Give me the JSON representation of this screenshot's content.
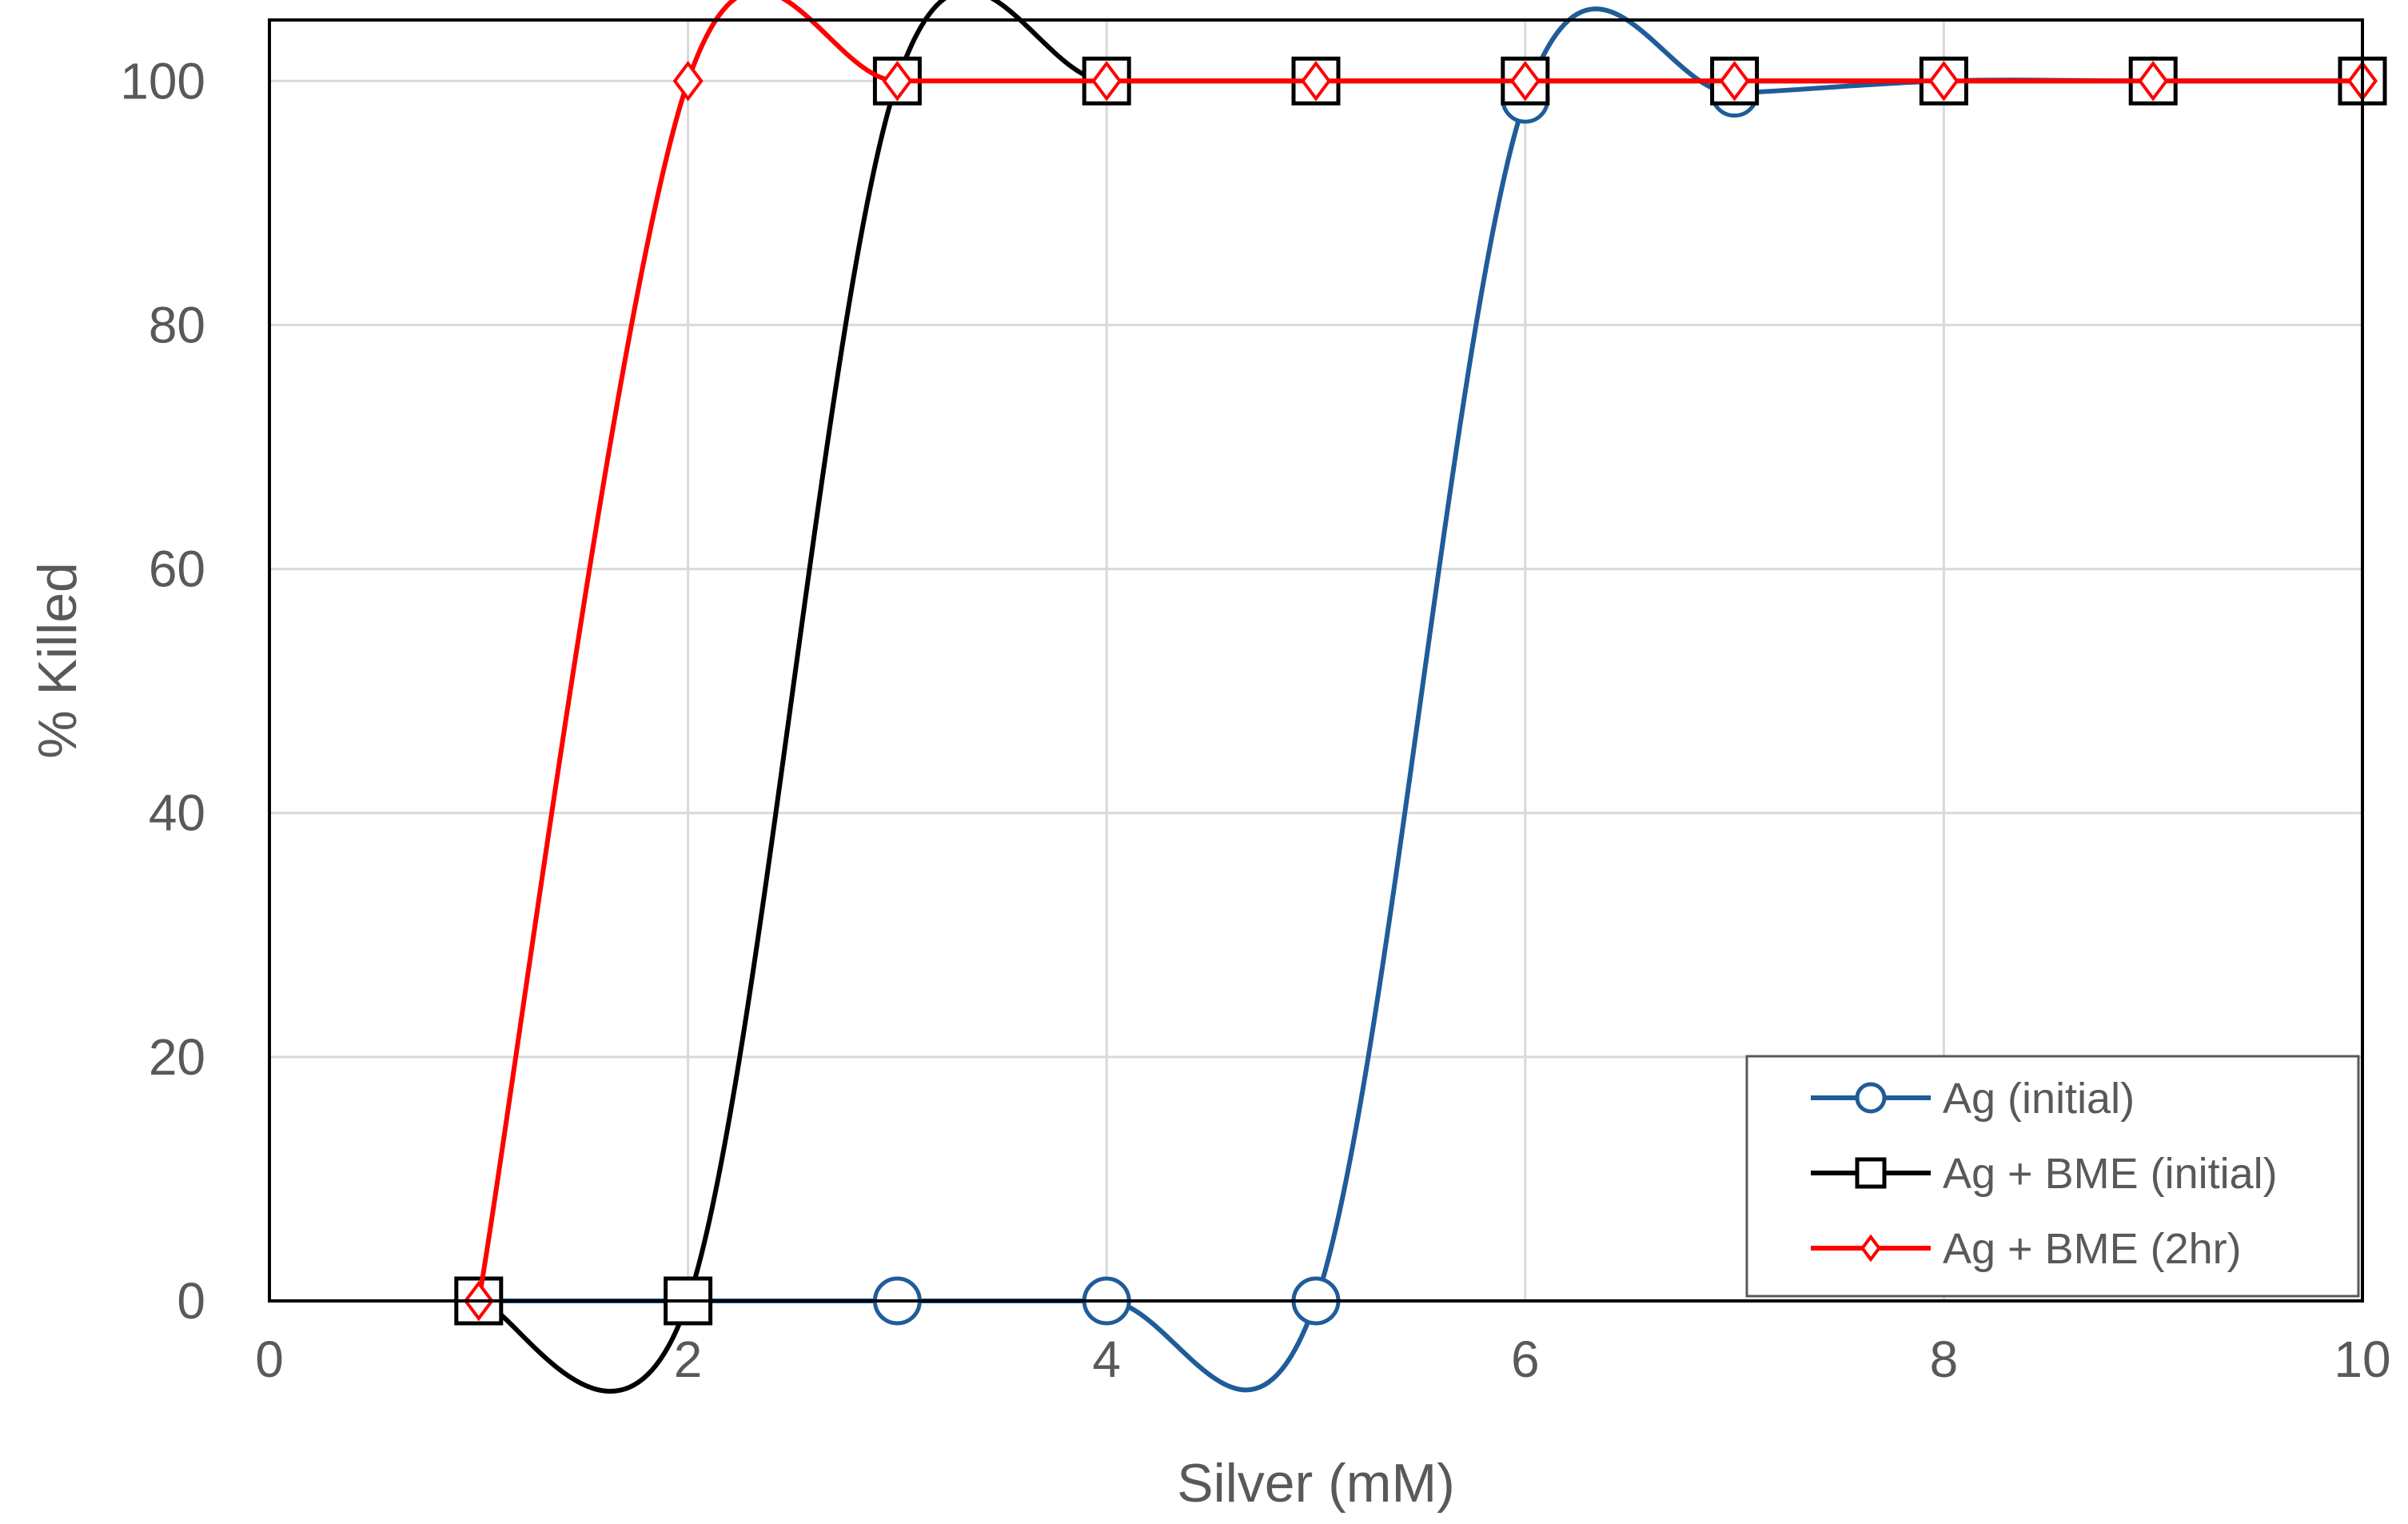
{
  "chart_data": {
    "type": "line",
    "title": "",
    "xlabel": "Silver (mM)",
    "ylabel": "% Killed",
    "xlim": [
      0,
      10
    ],
    "ylim": [
      0,
      105
    ],
    "xticks": [
      0,
      2,
      4,
      6,
      8,
      10
    ],
    "yticks": [
      0,
      20,
      40,
      60,
      80,
      100
    ],
    "grid": true,
    "smooth": true,
    "legend_position": "bottom-right",
    "series": [
      {
        "name": "Ag (initial)",
        "color": "#1f5c99",
        "marker": "circle",
        "x": [
          1,
          2,
          3,
          4,
          5,
          6,
          7,
          8,
          9,
          10
        ],
        "y": [
          0,
          0,
          0,
          0,
          0,
          98.5,
          99,
          100,
          100,
          100
        ]
      },
      {
        "name": "Ag + BME (initial)",
        "color": "#000000",
        "marker": "square",
        "x": [
          1,
          2,
          3,
          4,
          5,
          6,
          7,
          8,
          9,
          10
        ],
        "y": [
          0,
          0,
          100,
          100,
          100,
          100,
          100,
          100,
          100,
          100
        ]
      },
      {
        "name": "Ag + BME (2hr)",
        "color": "#ff0000",
        "marker": "diamond",
        "x": [
          1,
          2,
          3,
          4,
          5,
          6,
          7,
          8,
          9,
          10
        ],
        "y": [
          0,
          100,
          100,
          100,
          100,
          100,
          100,
          100,
          100,
          100
        ]
      }
    ]
  }
}
